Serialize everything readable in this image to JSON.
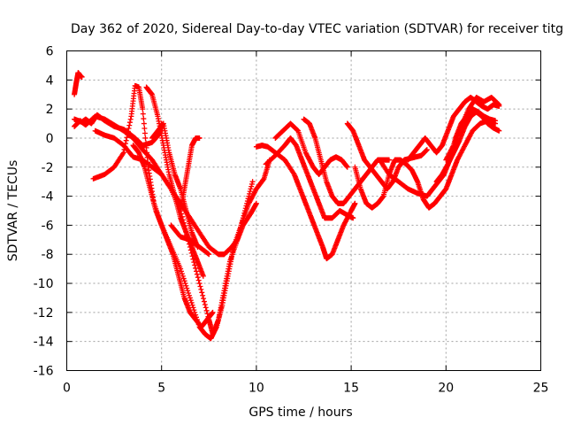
{
  "chart_data": {
    "type": "scatter",
    "title": "Day 362 of 2020, Sidereal Day-to-day VTEC variation (SDTVAR) for receiver titg",
    "xlabel": "GPS time / hours",
    "ylabel": "SDTVAR / TECUs",
    "xlim": [
      0,
      25
    ],
    "ylim": [
      -16,
      6
    ],
    "xticks": [
      0,
      5,
      10,
      15,
      20,
      25
    ],
    "yticks": [
      -16,
      -14,
      -12,
      -10,
      -8,
      -6,
      -4,
      -2,
      0,
      2,
      4,
      6
    ],
    "grid": true,
    "marker": "+",
    "color": "#ff0000",
    "series": [
      {
        "x": [
          0.4,
          0.5,
          0.6,
          0.7,
          0.8
        ],
        "y": [
          3.0,
          3.8,
          4.5,
          4.3,
          4.2
        ]
      },
      {
        "x": [
          0.4,
          0.6,
          0.8,
          1.0,
          1.3,
          1.6,
          2.0,
          2.5,
          3.0,
          3.3,
          3.6,
          4.0,
          4.5,
          4.9,
          5.0
        ],
        "y": [
          1.3,
          1.2,
          1.1,
          1.3,
          1.0,
          1.6,
          1.2,
          0.8,
          0.6,
          0.3,
          0.0,
          -0.5,
          -0.3,
          0.3,
          1.0
        ]
      },
      {
        "x": [
          0.4,
          0.7,
          1.0,
          1.5,
          2.0,
          2.5,
          3.0,
          3.5,
          4.0,
          4.5,
          5.0,
          5.5,
          6.0,
          6.5,
          7.0,
          7.5,
          8.0,
          8.3,
          8.7,
          9.0,
          9.4,
          9.8
        ],
        "y": [
          0.8,
          1.2,
          0.9,
          1.5,
          1.3,
          0.9,
          0.5,
          0.0,
          -0.8,
          -1.5,
          -2.5,
          -3.5,
          -4.5,
          -5.5,
          -6.5,
          -7.5,
          -8.0,
          -8.0,
          -7.5,
          -7.0,
          -5.0,
          -3.0
        ]
      },
      {
        "x": [
          1.4,
          2.0,
          2.5,
          3.0,
          3.4,
          3.6,
          3.8,
          4.0,
          4.3,
          4.6,
          5.0,
          5.5,
          6.0,
          6.5,
          7.0,
          7.3,
          7.6,
          7.9,
          8.2,
          8.5,
          8.8,
          9.2,
          9.6,
          10.0,
          10.4,
          10.7
        ],
        "y": [
          -2.8,
          -2.5,
          -2.0,
          -1.0,
          1.5,
          3.6,
          3.5,
          2.0,
          -2.0,
          -4.5,
          -6.0,
          -7.5,
          -9.0,
          -11.0,
          -13.0,
          -13.5,
          -13.8,
          -13.0,
          -11.5,
          -9.5,
          -7.5,
          -6.0,
          -4.5,
          -3.5,
          -2.8,
          -1.5
        ]
      },
      {
        "x": [
          1.5,
          2.0,
          2.5,
          3.0,
          3.5,
          4.0,
          4.5,
          5.0,
          5.5,
          6.0,
          6.5,
          7.0,
          7.5,
          7.7,
          8.0,
          8.3,
          8.6,
          9.0,
          9.3,
          9.7,
          10.0
        ],
        "y": [
          0.5,
          0.2,
          0.0,
          -0.5,
          -1.3,
          -1.5,
          -2.0,
          -2.5,
          -3.5,
          -5.0,
          -7.5,
          -10.0,
          -12.5,
          -13.5,
          -12.5,
          -10.5,
          -8.5,
          -7.0,
          -6.0,
          -5.2,
          -4.5
        ]
      },
      {
        "x": [
          3.5,
          3.8,
          4.1,
          4.4,
          4.7,
          5.0,
          5.3,
          5.6,
          5.9,
          6.2,
          6.5,
          6.8,
          7.1,
          7.4,
          7.7
        ],
        "y": [
          -0.5,
          -1.0,
          -2.0,
          -3.5,
          -5.0,
          -6.0,
          -7.0,
          -8.0,
          -9.5,
          -11.0,
          -12.0,
          -12.5,
          -13.0,
          -12.5,
          -12.0
        ]
      },
      {
        "x": [
          4.2,
          4.5,
          4.8,
          5.1,
          5.4,
          5.7,
          6.0,
          6.3,
          6.6,
          6.9,
          7.2
        ],
        "y": [
          3.5,
          3.0,
          1.5,
          -0.5,
          -2.5,
          -4.0,
          -5.5,
          -6.5,
          -7.5,
          -8.5,
          -9.5
        ]
      },
      {
        "x": [
          4.5,
          4.8,
          5.1,
          5.4,
          5.7,
          6.0,
          6.3,
          6.6,
          6.9
        ],
        "y": [
          0.0,
          0.5,
          1.0,
          -1.0,
          -2.5,
          -3.5,
          -5.0,
          -6.5,
          -7.5
        ]
      },
      {
        "x": [
          6.0,
          6.2,
          6.4,
          6.6,
          6.8,
          7.0
        ],
        "y": [
          -5.0,
          -3.5,
          -2.0,
          -0.5,
          0.0,
          0.0
        ]
      },
      {
        "x": [
          5.5,
          6.0,
          6.5,
          7.0,
          7.5
        ],
        "y": [
          -6.0,
          -6.8,
          -7.0,
          -7.5,
          -8.0
        ]
      },
      {
        "x": [
          10.0,
          10.3,
          10.6,
          11.0,
          11.5,
          12.0,
          12.3,
          12.6,
          12.9,
          13.2,
          13.5,
          13.7,
          14.0,
          14.3,
          14.6,
          15.0,
          15.2
        ],
        "y": [
          -0.6,
          -0.5,
          -0.6,
          -1.0,
          -1.5,
          -2.5,
          -3.5,
          -4.5,
          -5.5,
          -6.5,
          -7.5,
          -8.3,
          -8.0,
          -7.0,
          -6.0,
          -5.0,
          -4.5
        ]
      },
      {
        "x": [
          10.5,
          11.0,
          11.5,
          11.8,
          12.1,
          12.4,
          12.7,
          13.0,
          13.3,
          13.6,
          14.0,
          14.4,
          14.8,
          15.1
        ],
        "y": [
          -1.8,
          -1.2,
          -0.5,
          0.0,
          -0.5,
          -1.5,
          -2.5,
          -3.5,
          -4.5,
          -5.5,
          -5.5,
          -5.0,
          -5.3,
          -5.5
        ]
      },
      {
        "x": [
          11.0,
          11.4,
          11.8,
          12.2,
          12.6,
          13.0,
          13.3,
          13.6,
          13.9,
          14.2,
          14.5,
          14.8
        ],
        "y": [
          0.0,
          0.5,
          1.0,
          0.5,
          -1.0,
          -2.0,
          -2.5,
          -2.0,
          -1.5,
          -1.3,
          -1.5,
          -2.0
        ]
      },
      {
        "x": [
          12.5,
          12.8,
          13.1,
          13.4,
          13.7,
          14.0,
          14.3,
          14.6,
          14.9,
          15.2,
          15.5,
          15.8,
          16.1,
          16.4,
          16.7,
          17.0
        ],
        "y": [
          1.3,
          1.0,
          0.0,
          -1.5,
          -3.0,
          -4.0,
          -4.5,
          -4.5,
          -4.0,
          -3.5,
          -3.0,
          -2.5,
          -2.0,
          -1.5,
          -1.5,
          -1.5
        ]
      },
      {
        "x": [
          14.8,
          15.1,
          15.4,
          15.7,
          16.0,
          16.3,
          16.6,
          16.9,
          17.2,
          17.5,
          17.8,
          18.1,
          18.4,
          18.7,
          19.0
        ],
        "y": [
          1.0,
          0.5,
          -0.5,
          -1.5,
          -2.0,
          -2.5,
          -3.0,
          -3.5,
          -3.0,
          -2.0,
          -1.5,
          -1.4,
          -1.3,
          -1.2,
          -0.8
        ]
      },
      {
        "x": [
          15.2,
          15.5,
          15.8,
          16.1,
          16.4,
          16.7,
          17.0,
          17.3,
          17.6,
          17.9,
          18.2,
          18.5,
          18.8,
          19.1,
          19.4,
          19.7,
          20.0,
          20.3,
          20.6,
          21.0,
          21.4,
          21.8,
          22.2,
          22.6
        ],
        "y": [
          -2.0,
          -3.5,
          -4.5,
          -4.8,
          -4.5,
          -4.0,
          -2.5,
          -1.5,
          -1.5,
          -1.8,
          -2.2,
          -3.0,
          -4.2,
          -4.8,
          -4.5,
          -4.0,
          -3.5,
          -2.5,
          -1.5,
          -0.5,
          0.5,
          1.0,
          1.2,
          1.0
        ]
      },
      {
        "x": [
          16.5,
          17.0,
          17.5,
          18.0,
          18.5,
          19.0,
          19.3,
          19.6,
          19.9,
          20.2,
          20.5,
          20.8,
          21.1,
          21.4,
          21.7,
          22.0,
          22.3,
          22.6
        ],
        "y": [
          -1.5,
          -2.5,
          -3.0,
          -3.5,
          -3.8,
          -4.0,
          -3.5,
          -3.0,
          -2.5,
          -1.5,
          0.0,
          1.0,
          1.5,
          2.0,
          1.8,
          1.5,
          1.3,
          1.2
        ]
      },
      {
        "x": [
          18.0,
          18.3,
          18.6,
          18.9,
          19.2,
          19.5,
          19.8,
          20.1,
          20.4,
          20.7,
          21.0,
          21.3,
          21.6,
          21.9,
          22.2,
          22.5,
          22.8
        ],
        "y": [
          -1.5,
          -1.0,
          -0.5,
          0.0,
          -0.5,
          -1.0,
          -0.5,
          0.5,
          1.5,
          2.0,
          2.5,
          2.8,
          2.5,
          2.2,
          2.0,
          2.3,
          2.2
        ]
      },
      {
        "x": [
          19.5,
          19.8,
          20.1,
          20.4,
          20.7,
          21.0,
          21.3,
          21.6,
          21.9,
          22.2,
          22.5,
          22.8
        ],
        "y": [
          -3.0,
          -2.5,
          -1.8,
          -1.0,
          -0.2,
          0.8,
          1.5,
          1.8,
          1.5,
          1.0,
          0.7,
          0.5
        ]
      },
      {
        "x": [
          20.0,
          20.4,
          20.8,
          21.2,
          21.6,
          22.0,
          22.4,
          22.8
        ],
        "y": [
          -1.5,
          -0.5,
          0.8,
          2.0,
          2.8,
          2.5,
          2.8,
          2.3
        ]
      }
    ]
  }
}
